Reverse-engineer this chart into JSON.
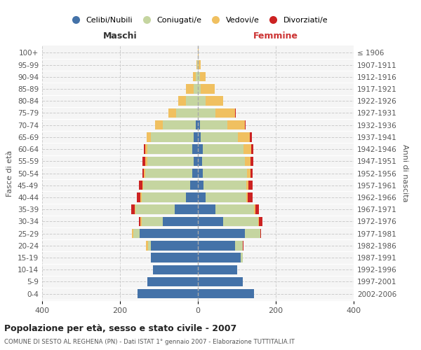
{
  "age_groups": [
    "0-4",
    "5-9",
    "10-14",
    "15-19",
    "20-24",
    "25-29",
    "30-34",
    "35-39",
    "40-44",
    "45-49",
    "50-54",
    "55-59",
    "60-64",
    "65-69",
    "70-74",
    "75-79",
    "80-84",
    "85-89",
    "90-94",
    "95-99",
    "100+"
  ],
  "birth_years": [
    "2002-2006",
    "1997-2001",
    "1992-1996",
    "1987-1991",
    "1982-1986",
    "1977-1981",
    "1972-1976",
    "1967-1971",
    "1962-1966",
    "1957-1961",
    "1952-1956",
    "1947-1951",
    "1942-1946",
    "1937-1941",
    "1932-1936",
    "1927-1931",
    "1922-1926",
    "1917-1921",
    "1912-1916",
    "1907-1911",
    "≤ 1906"
  ],
  "males": {
    "celibi": [
      155,
      130,
      115,
      120,
      120,
      150,
      90,
      60,
      30,
      20,
      15,
      10,
      15,
      10,
      5,
      0,
      0,
      0,
      0,
      0,
      0
    ],
    "coniugati": [
      0,
      0,
      0,
      0,
      8,
      15,
      55,
      100,
      115,
      120,
      120,
      120,
      115,
      110,
      85,
      55,
      30,
      10,
      5,
      2,
      0
    ],
    "vedovi": [
      0,
      0,
      0,
      0,
      5,
      5,
      2,
      2,
      3,
      3,
      3,
      5,
      5,
      12,
      20,
      20,
      20,
      20,
      8,
      2,
      0
    ],
    "divorziati": [
      0,
      0,
      0,
      0,
      0,
      0,
      5,
      10,
      8,
      8,
      5,
      8,
      3,
      0,
      0,
      0,
      0,
      0,
      0,
      0,
      0
    ]
  },
  "females": {
    "nubili": [
      145,
      115,
      100,
      110,
      95,
      120,
      65,
      45,
      20,
      15,
      12,
      10,
      12,
      8,
      5,
      0,
      0,
      0,
      0,
      0,
      0
    ],
    "coniugate": [
      0,
      0,
      0,
      5,
      20,
      40,
      90,
      100,
      105,
      110,
      115,
      110,
      105,
      95,
      70,
      45,
      20,
      8,
      5,
      2,
      0
    ],
    "vedove": [
      0,
      0,
      0,
      0,
      0,
      0,
      2,
      2,
      3,
      5,
      8,
      15,
      20,
      30,
      45,
      50,
      45,
      35,
      15,
      5,
      2
    ],
    "divorziate": [
      0,
      0,
      0,
      0,
      2,
      2,
      8,
      10,
      12,
      10,
      5,
      8,
      5,
      5,
      3,
      3,
      0,
      0,
      0,
      0,
      0
    ]
  },
  "colors": {
    "celibi": "#4472a8",
    "coniugati": "#c5d5a0",
    "vedovi": "#f0c060",
    "divorziati": "#cc2222"
  },
  "title": "Popolazione per età, sesso e stato civile - 2007",
  "subtitle": "COMUNE DI SESTO AL REGHENA (PN) - Dati ISTAT 1° gennaio 2007 - Elaborazione TUTTITALIA.IT",
  "xlabel_left": "Maschi",
  "xlabel_right": "Femmine",
  "ylabel_left": "Fasce di età",
  "ylabel_right": "Anni di nascita",
  "legend_labels": [
    "Celibi/Nubili",
    "Coniugati/e",
    "Vedovi/e",
    "Divorziati/e"
  ],
  "xlim": 400
}
